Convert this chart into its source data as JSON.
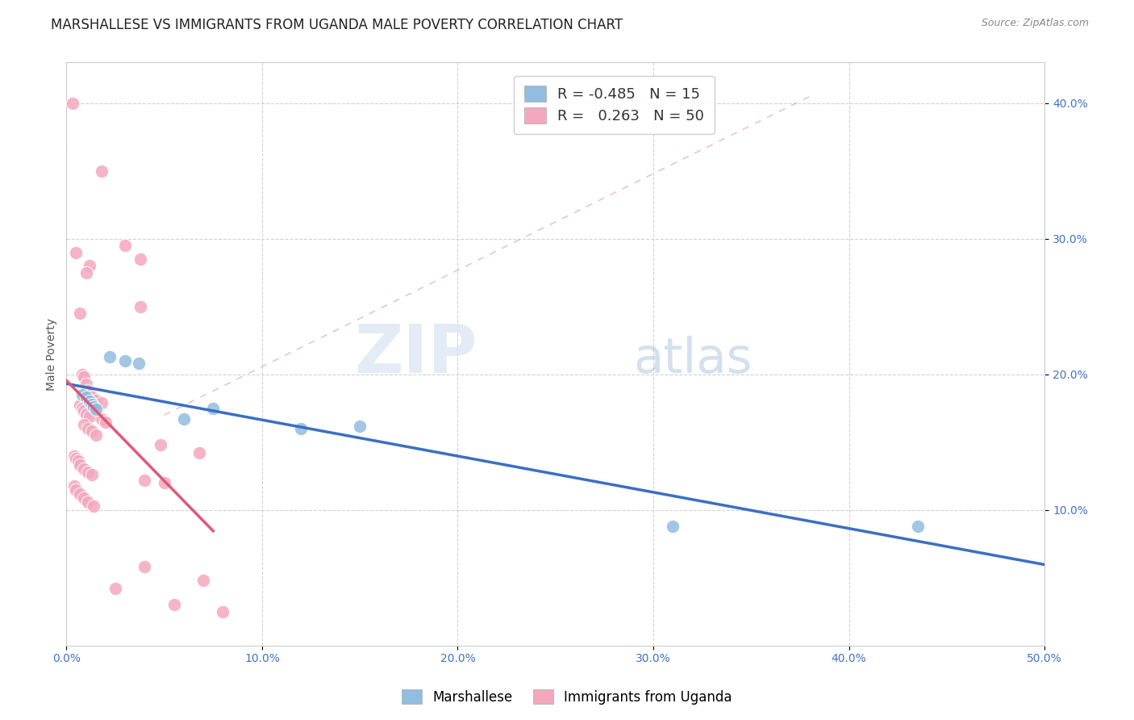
{
  "title": "MARSHALLESE VS IMMIGRANTS FROM UGANDA MALE POVERTY CORRELATION CHART",
  "source": "Source: ZipAtlas.com",
  "ylabel": "Male Poverty",
  "xlim": [
    0.0,
    0.5
  ],
  "ylim": [
    0.0,
    0.43
  ],
  "xticks": [
    0.0,
    0.1,
    0.2,
    0.3,
    0.4,
    0.5
  ],
  "yticks": [
    0.1,
    0.2,
    0.3,
    0.4
  ],
  "xtick_labels": [
    "0.0%",
    "10.0%",
    "20.0%",
    "30.0%",
    "40.0%",
    "50.0%"
  ],
  "ytick_labels": [
    "10.0%",
    "20.0%",
    "30.0%",
    "40.0%"
  ],
  "watermark_zip": "ZIP",
  "watermark_atlas": "atlas",
  "marshallese_points": [
    [
      0.008,
      0.185
    ],
    [
      0.01,
      0.183
    ],
    [
      0.012,
      0.18
    ],
    [
      0.013,
      0.178
    ],
    [
      0.014,
      0.176
    ],
    [
      0.015,
      0.174
    ],
    [
      0.022,
      0.213
    ],
    [
      0.03,
      0.21
    ],
    [
      0.037,
      0.208
    ],
    [
      0.06,
      0.167
    ],
    [
      0.075,
      0.175
    ],
    [
      0.12,
      0.16
    ],
    [
      0.15,
      0.162
    ],
    [
      0.31,
      0.088
    ],
    [
      0.435,
      0.088
    ]
  ],
  "uganda_points": [
    [
      0.003,
      0.4
    ],
    [
      0.018,
      0.35
    ],
    [
      0.03,
      0.295
    ],
    [
      0.005,
      0.29
    ],
    [
      0.038,
      0.285
    ],
    [
      0.012,
      0.28
    ],
    [
      0.01,
      0.275
    ],
    [
      0.038,
      0.25
    ],
    [
      0.007,
      0.245
    ],
    [
      0.008,
      0.2
    ],
    [
      0.009,
      0.198
    ],
    [
      0.01,
      0.193
    ],
    [
      0.011,
      0.188
    ],
    [
      0.012,
      0.185
    ],
    [
      0.013,
      0.183
    ],
    [
      0.015,
      0.181
    ],
    [
      0.018,
      0.179
    ],
    [
      0.007,
      0.177
    ],
    [
      0.008,
      0.175
    ],
    [
      0.009,
      0.173
    ],
    [
      0.01,
      0.171
    ],
    [
      0.012,
      0.169
    ],
    [
      0.018,
      0.167
    ],
    [
      0.02,
      0.165
    ],
    [
      0.009,
      0.163
    ],
    [
      0.011,
      0.16
    ],
    [
      0.013,
      0.158
    ],
    [
      0.015,
      0.155
    ],
    [
      0.048,
      0.148
    ],
    [
      0.068,
      0.142
    ],
    [
      0.004,
      0.14
    ],
    [
      0.005,
      0.138
    ],
    [
      0.006,
      0.136
    ],
    [
      0.007,
      0.133
    ],
    [
      0.009,
      0.13
    ],
    [
      0.011,
      0.128
    ],
    [
      0.013,
      0.126
    ],
    [
      0.04,
      0.122
    ],
    [
      0.05,
      0.12
    ],
    [
      0.004,
      0.118
    ],
    [
      0.005,
      0.115
    ],
    [
      0.007,
      0.112
    ],
    [
      0.009,
      0.109
    ],
    [
      0.011,
      0.106
    ],
    [
      0.014,
      0.103
    ],
    [
      0.04,
      0.058
    ],
    [
      0.07,
      0.048
    ],
    [
      0.025,
      0.042
    ],
    [
      0.055,
      0.03
    ],
    [
      0.08,
      0.025
    ]
  ],
  "marshallese_color": "#92bce0",
  "uganda_color": "#f4a8be",
  "marshallese_line_color": "#3a6fc4",
  "uganda_line_color": "#e05878",
  "dashed_line_color": "#d4a0b0",
  "background_color": "#ffffff",
  "title_fontsize": 12,
  "axis_label_fontsize": 10,
  "tick_fontsize": 10,
  "tick_color": "#4472c4",
  "legend_fontsize": 13
}
